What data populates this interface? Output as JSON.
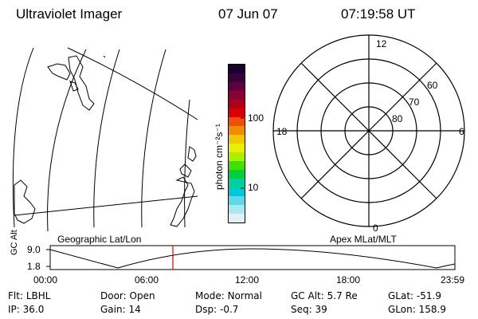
{
  "header": {
    "title": "Ultraviolet Imager",
    "date": "07 Jun 07",
    "time": "07:19:58 UT"
  },
  "left_panel": {
    "label": "Geographic Lat/Lon"
  },
  "color_bar": {
    "label": "photon cm⁻²s⁻¹",
    "ticks": [
      "100",
      "10"
    ],
    "colors": [
      "#1a0030",
      "#3a003a",
      "#600040",
      "#8a0030",
      "#b00018",
      "#d80000",
      "#f05000",
      "#f08c00",
      "#f0c800",
      "#e8f000",
      "#a8f000",
      "#40e000",
      "#00d040",
      "#00d0a0",
      "#00c8d8",
      "#60d8e8",
      "#a8e8f0",
      "#e0f0f4"
    ]
  },
  "polar_plot": {
    "label": "Apex MLat/MLT",
    "mlt_labels": {
      "top": "12",
      "left": "18",
      "right": "6",
      "bottom": "0"
    },
    "mlat_labels": [
      "60",
      "70",
      "80"
    ]
  },
  "altitude_plot": {
    "ylabel": "GC Alt",
    "y_ticks": [
      "9.0",
      "1.8"
    ],
    "x_ticks": [
      "00:00",
      "06:00",
      "12:00",
      "18:00",
      "23:59"
    ],
    "marker_time": "07:19:58",
    "marker_color": "#e00000"
  },
  "info_panel": {
    "rows": [
      [
        {
          "key": "Flt:",
          "value": "LBHL"
        },
        {
          "key": "Door:",
          "value": "Open"
        },
        {
          "key": "Mode:",
          "value": "Normal"
        },
        {
          "key": "GC Alt:",
          "value": "5.7 Re"
        },
        {
          "key": "GLat:",
          "value": "-51.9"
        }
      ],
      [
        {
          "key": "IP:",
          "value": "36.0"
        },
        {
          "key": "Gain:",
          "value": "14"
        },
        {
          "key": "Dsp:",
          "value": "-0.7"
        },
        {
          "key": "Seq:",
          "value": "39"
        },
        {
          "key": "GLon:",
          "value": "158.9"
        }
      ]
    ]
  }
}
